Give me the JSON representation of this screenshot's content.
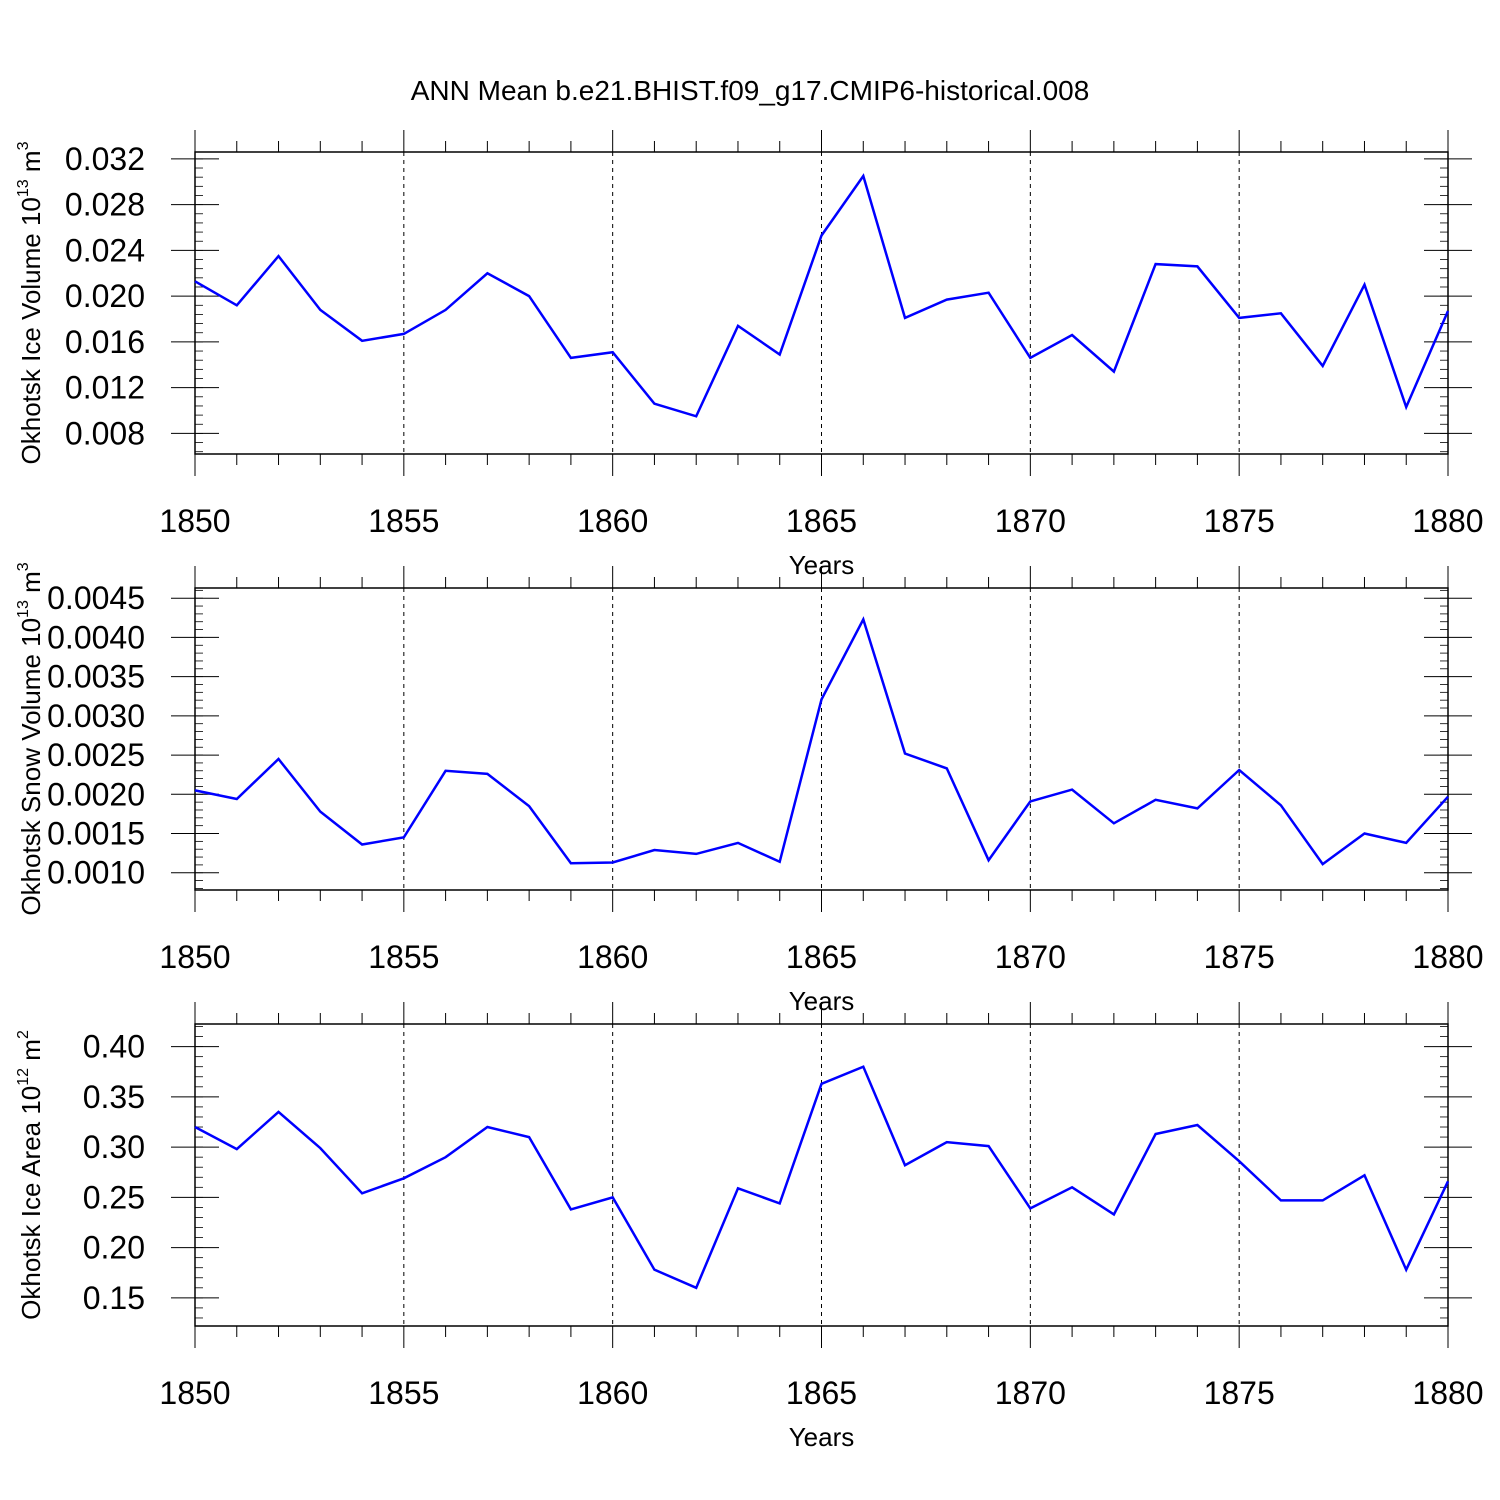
{
  "title": "ANN Mean b.e21.BHIST.f09_g17.CMIP6-historical.008",
  "line_color": "#0000ff",
  "chart_data": [
    {
      "type": "line",
      "ylabel": {
        "main": "Okhotsk Ice Volume 10",
        "exp": "13",
        "unit": " m",
        "unit_exp": "3"
      },
      "xlabel": "Years",
      "xlim": [
        1850,
        1880
      ],
      "ylim": [
        0.0062,
        0.0326
      ],
      "x_ticks": [
        1850,
        1855,
        1860,
        1865,
        1870,
        1875,
        1880
      ],
      "x_tick_labels": [
        "1850",
        "1855",
        "1860",
        "1865",
        "1870",
        "1875",
        "1880"
      ],
      "y_ticks": [
        0.008,
        0.012,
        0.016,
        0.02,
        0.024,
        0.028,
        0.032
      ],
      "y_tick_labels": [
        "0.008",
        "0.012",
        "0.016",
        "0.020",
        "0.024",
        "0.028",
        "0.032"
      ],
      "y_minor_step": 0.0008,
      "grid": "dashed vertical at major x ticks",
      "x": [
        1850,
        1851,
        1852,
        1853,
        1854,
        1855,
        1856,
        1857,
        1858,
        1859,
        1860,
        1861,
        1862,
        1863,
        1864,
        1865,
        1866,
        1867,
        1868,
        1869,
        1870,
        1871,
        1872,
        1873,
        1874,
        1875,
        1876,
        1877,
        1878,
        1879,
        1880
      ],
      "values": [
        0.0213,
        0.0192,
        0.0235,
        0.0188,
        0.0161,
        0.0167,
        0.0188,
        0.022,
        0.02,
        0.0146,
        0.0151,
        0.0106,
        0.0095,
        0.0174,
        0.0149,
        0.0253,
        0.0305,
        0.0181,
        0.0197,
        0.0203,
        0.0146,
        0.0166,
        0.0134,
        0.0228,
        0.0226,
        0.0181,
        0.0185,
        0.0139,
        0.021,
        0.0103,
        0.0187
      ]
    },
    {
      "type": "line",
      "ylabel": {
        "main": "Okhotsk Snow Volume 10",
        "exp": "13",
        "unit": " m",
        "unit_exp": "3"
      },
      "xlabel": "Years",
      "xlim": [
        1850,
        1880
      ],
      "ylim": [
        0.00078,
        0.00463
      ],
      "x_ticks": [
        1850,
        1855,
        1860,
        1865,
        1870,
        1875,
        1880
      ],
      "x_tick_labels": [
        "1850",
        "1855",
        "1860",
        "1865",
        "1870",
        "1875",
        "1880"
      ],
      "y_ticks": [
        0.001,
        0.0015,
        0.002,
        0.0025,
        0.003,
        0.0035,
        0.004,
        0.0045
      ],
      "y_tick_labels": [
        "0.0010",
        "0.0015",
        "0.0020",
        "0.0025",
        "0.0030",
        "0.0035",
        "0.0040",
        "0.0045"
      ],
      "y_minor_step": 0.0001,
      "grid": "dashed vertical at major x ticks",
      "x": [
        1850,
        1851,
        1852,
        1853,
        1854,
        1855,
        1856,
        1857,
        1858,
        1859,
        1860,
        1861,
        1862,
        1863,
        1864,
        1865,
        1866,
        1867,
        1868,
        1869,
        1870,
        1871,
        1872,
        1873,
        1874,
        1875,
        1876,
        1877,
        1878,
        1879,
        1880
      ],
      "values": [
        0.00205,
        0.00194,
        0.00245,
        0.00178,
        0.00136,
        0.00145,
        0.0023,
        0.00226,
        0.00185,
        0.00112,
        0.00113,
        0.00129,
        0.00124,
        0.00138,
        0.00114,
        0.00321,
        0.00423,
        0.00252,
        0.00233,
        0.00116,
        0.00191,
        0.00206,
        0.00163,
        0.00193,
        0.00182,
        0.00231,
        0.00186,
        0.00111,
        0.0015,
        0.00138,
        0.00197
      ]
    },
    {
      "type": "line",
      "ylabel": {
        "main": "Okhotsk Ice Area 10",
        "exp": "12",
        "unit": " m",
        "unit_exp": "2"
      },
      "xlabel": "Years",
      "xlim": [
        1850,
        1880
      ],
      "ylim": [
        0.122,
        0.4225
      ],
      "x_ticks": [
        1850,
        1855,
        1860,
        1865,
        1870,
        1875,
        1880
      ],
      "x_tick_labels": [
        "1850",
        "1855",
        "1860",
        "1865",
        "1870",
        "1875",
        "1880"
      ],
      "y_ticks": [
        0.15,
        0.2,
        0.25,
        0.3,
        0.35,
        0.4
      ],
      "y_tick_labels": [
        "0.15",
        "0.20",
        "0.25",
        "0.30",
        "0.35",
        "0.40"
      ],
      "y_minor_step": 0.01,
      "grid": "dashed vertical at major x ticks",
      "x": [
        1850,
        1851,
        1852,
        1853,
        1854,
        1855,
        1856,
        1857,
        1858,
        1859,
        1860,
        1861,
        1862,
        1863,
        1864,
        1865,
        1866,
        1867,
        1868,
        1869,
        1870,
        1871,
        1872,
        1873,
        1874,
        1875,
        1876,
        1877,
        1878,
        1879,
        1880
      ],
      "values": [
        0.32,
        0.298,
        0.335,
        0.299,
        0.254,
        0.269,
        0.29,
        0.32,
        0.31,
        0.238,
        0.25,
        0.178,
        0.16,
        0.259,
        0.244,
        0.363,
        0.38,
        0.282,
        0.305,
        0.301,
        0.239,
        0.26,
        0.233,
        0.313,
        0.322,
        0.286,
        0.247,
        0.247,
        0.272,
        0.178,
        0.266
      ]
    }
  ]
}
